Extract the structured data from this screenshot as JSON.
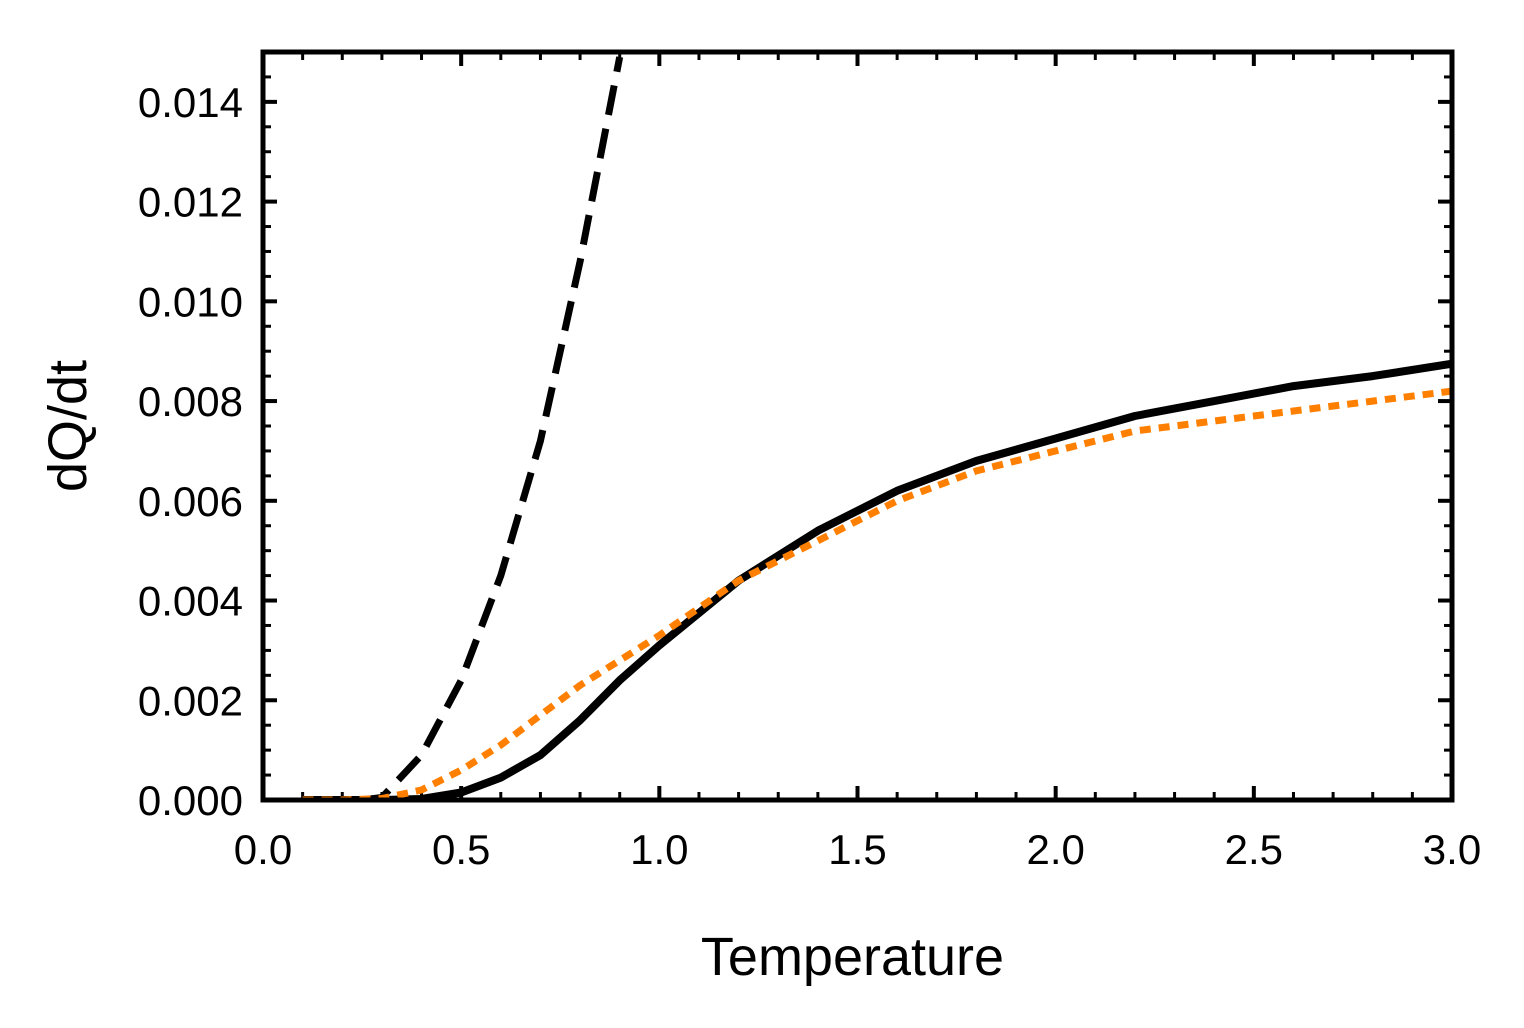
{
  "chart_data": {
    "type": "line",
    "title": "",
    "xlabel": "Temperature",
    "ylabel": "dQ/dt",
    "xlim": [
      0.0,
      3.0
    ],
    "ylim": [
      0.0,
      0.015
    ],
    "x_ticks": [
      "0.0",
      "0.5",
      "1.0",
      "1.5",
      "2.0",
      "2.5",
      "3.0"
    ],
    "y_ticks": [
      "0.000",
      "0.002",
      "0.004",
      "0.006",
      "0.008",
      "0.010",
      "0.012",
      "0.014"
    ],
    "x_tick_values": [
      0.0,
      0.5,
      1.0,
      1.5,
      2.0,
      2.5,
      3.0
    ],
    "y_tick_values": [
      0.0,
      0.002,
      0.004,
      0.006,
      0.008,
      0.01,
      0.012,
      0.014
    ],
    "grid": false,
    "legend": "none",
    "series": [
      {
        "style": "solid",
        "color": "#000000",
        "x": [
          0.1,
          0.2,
          0.3,
          0.4,
          0.5,
          0.6,
          0.7,
          0.8,
          0.9,
          1.0,
          1.2,
          1.4,
          1.6,
          1.8,
          2.0,
          2.2,
          2.4,
          2.6,
          2.8,
          3.0
        ],
        "y": [
          0.0,
          0.0,
          0.0,
          2e-05,
          0.00015,
          0.00045,
          0.0009,
          0.0016,
          0.0024,
          0.0031,
          0.0044,
          0.0054,
          0.0062,
          0.0068,
          0.00725,
          0.0077,
          0.008,
          0.0083,
          0.0085,
          0.00875
        ]
      },
      {
        "style": "dashed",
        "color": "#000000",
        "x": [
          0.25,
          0.3,
          0.4,
          0.5,
          0.6,
          0.7,
          0.8,
          0.9
        ],
        "y": [
          0.0,
          5e-05,
          0.0009,
          0.0024,
          0.0045,
          0.0072,
          0.0108,
          0.0149
        ]
      },
      {
        "style": "dotted",
        "color": "#ff7f00",
        "x": [
          0.1,
          0.2,
          0.3,
          0.4,
          0.5,
          0.6,
          0.7,
          0.8,
          0.9,
          1.0,
          1.2,
          1.4,
          1.6,
          1.8,
          2.0,
          2.2,
          2.4,
          2.6,
          2.8,
          3.0
        ],
        "y": [
          0.0,
          0.0,
          3e-05,
          0.0002,
          0.0006,
          0.0011,
          0.0017,
          0.0023,
          0.0028,
          0.0033,
          0.0044,
          0.0052,
          0.006,
          0.0066,
          0.007,
          0.0074,
          0.0076,
          0.0078,
          0.008,
          0.0082
        ]
      }
    ]
  }
}
